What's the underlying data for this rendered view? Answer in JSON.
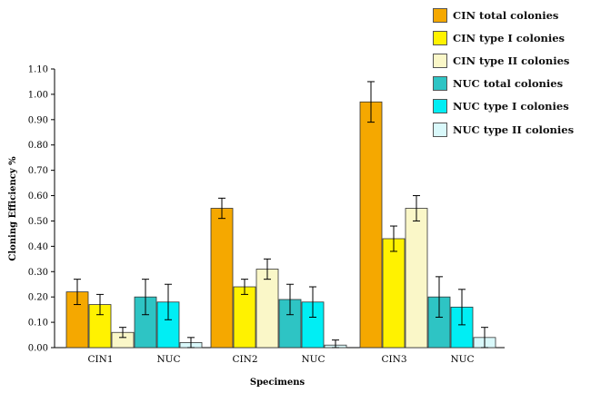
{
  "chart_data": {
    "type": "bar",
    "ylabel": "Cloning Efficiency %",
    "xlabel": "Specimens",
    "ylim": [
      0,
      1.1
    ],
    "yticks": [
      "0.00",
      "0.10",
      "0.20",
      "0.30",
      "0.40",
      "0.50",
      "0.60",
      "0.70",
      "0.80",
      "0.90",
      "1.00",
      "1.10"
    ],
    "groups": [
      {
        "categories": [
          "CIN1",
          "NUC"
        ]
      },
      {
        "categories": [
          "CIN2",
          "NUC"
        ]
      },
      {
        "categories": [
          "CIN3",
          "NUC"
        ]
      }
    ],
    "series": [
      {
        "name": "CIN total colonies",
        "color": "#F5A800",
        "values": [
          0.22,
          0.55,
          0.97
        ],
        "errors": [
          0.05,
          0.04,
          0.08
        ]
      },
      {
        "name": "CIN type I colonies",
        "color": "#FFF200",
        "values": [
          0.17,
          0.24,
          0.43
        ],
        "errors": [
          0.04,
          0.03,
          0.05
        ]
      },
      {
        "name": "CIN type II colonies",
        "color": "#FAF7C8",
        "values": [
          0.06,
          0.31,
          0.55
        ],
        "errors": [
          0.02,
          0.04,
          0.05
        ]
      },
      {
        "name": "NUC total colonies",
        "color": "#2EC4C4",
        "values": [
          0.2,
          0.19,
          0.2
        ],
        "errors": [
          0.07,
          0.06,
          0.08
        ]
      },
      {
        "name": "NUC type I colonies",
        "color": "#00EEF4",
        "values": [
          0.18,
          0.18,
          0.16
        ],
        "errors": [
          0.07,
          0.06,
          0.07
        ]
      },
      {
        "name": "NUC type II colonies",
        "color": "#D9F8FA",
        "values": [
          0.02,
          0.01,
          0.04
        ],
        "errors": [
          0.02,
          0.02,
          0.04
        ]
      }
    ],
    "legend_position": "top-right",
    "grid": false
  }
}
